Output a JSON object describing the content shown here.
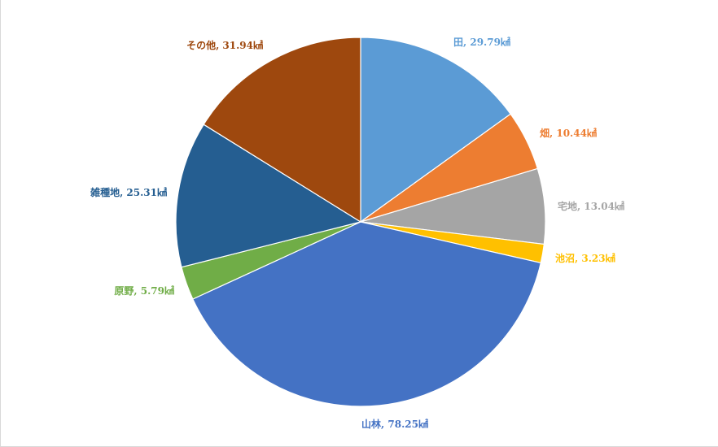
{
  "chart_data": {
    "type": "pie",
    "title": "",
    "unit": "㎢",
    "start_angle_deg": 0,
    "direction": "clockwise",
    "legend": "none",
    "slices": [
      {
        "category": "田",
        "value": 29.79,
        "label": "田, 29.79㎢",
        "color": "#5b9bd5"
      },
      {
        "category": "畑",
        "value": 10.44,
        "label": "畑, 10.44㎢",
        "color": "#ed7d31"
      },
      {
        "category": "宅地",
        "value": 13.04,
        "label": "宅地, 13.04㎢",
        "color": "#a5a5a5"
      },
      {
        "category": "池沼",
        "value": 3.23,
        "label": "池沼, 3.23㎢",
        "color": "#ffc000"
      },
      {
        "category": "山林",
        "value": 78.25,
        "label": "山林, 78.25㎢",
        "color": "#4472c4"
      },
      {
        "category": "原野",
        "value": 5.79,
        "label": "原野, 5.79㎢",
        "color": "#70ad47"
      },
      {
        "category": "雑種地",
        "value": 25.31,
        "label": "雑種地, 25.31㎢",
        "color": "#255e91"
      },
      {
        "category": "その他",
        "value": 31.94,
        "label": "その他, 31.94㎢",
        "color": "#9e480e"
      }
    ]
  }
}
